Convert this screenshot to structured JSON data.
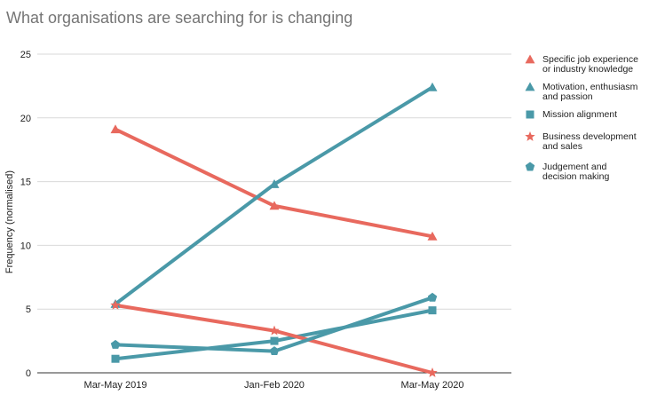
{
  "chart_data": {
    "type": "line",
    "title": "What organisations are searching for is changing",
    "xlabel": "",
    "ylabel": "Frequency (normalised)",
    "categories": [
      "Mar-May 2019",
      "Jan-Feb 2020",
      "Mar-May 2020"
    ],
    "ylim": [
      0,
      25
    ],
    "yticks": [
      "0",
      "5",
      "10",
      "15",
      "20",
      "25"
    ],
    "grid": "horizontal",
    "legend_position": "right",
    "series": [
      {
        "name": "Specific job experience or industry knowledge",
        "legend_lines": [
          "Specific job experience",
          "or industry knowledge"
        ],
        "values": [
          19.1,
          13.1,
          10.7
        ],
        "color": "#e8695e",
        "marker": "triangle"
      },
      {
        "name": "Motivation, enthusiasm and passion",
        "legend_lines": [
          "Motivation, enthusiasm",
          "and passion"
        ],
        "values": [
          5.4,
          14.8,
          22.4
        ],
        "color": "#4a99a8",
        "marker": "triangle"
      },
      {
        "name": "Mission alignment",
        "legend_lines": [
          "Mission alignment"
        ],
        "values": [
          1.1,
          2.5,
          4.9
        ],
        "color": "#4a99a8",
        "marker": "square"
      },
      {
        "name": "Business development and sales",
        "legend_lines": [
          "Business development",
          "and sales"
        ],
        "values": [
          5.3,
          3.3,
          0.0
        ],
        "color": "#e8695e",
        "marker": "star"
      },
      {
        "name": "Judgement and decision making",
        "legend_lines": [
          "Judgement and",
          "decision making"
        ],
        "values": [
          2.2,
          1.7,
          5.9
        ],
        "color": "#4a99a8",
        "marker": "pentagon"
      }
    ]
  }
}
